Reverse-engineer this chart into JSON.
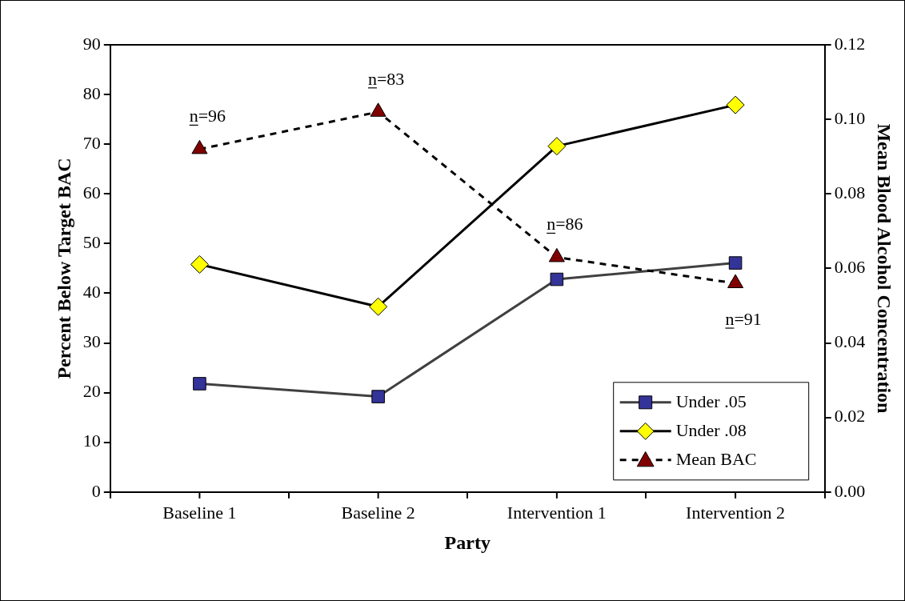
{
  "chart_data": {
    "type": "line",
    "xlabel": "Party",
    "ylabel": "Percent Below Target BAC",
    "y2label": "Mean Blood Alcohol Concentration",
    "categories": [
      "Baseline 1",
      "Baseline 2",
      "Intervention 1",
      "Intervention 2"
    ],
    "series": [
      {
        "name": "Under .05",
        "color": "#333399",
        "marker": "square",
        "line_style": "solid",
        "values": [
          21.8,
          19.2,
          42.8,
          46.1
        ]
      },
      {
        "name": "Under .08",
        "color": "#ffff00",
        "marker": "diamond",
        "line_style": "solid",
        "values": [
          45.8,
          37.3,
          69.6,
          77.9
        ]
      },
      {
        "name": "Mean BAC",
        "color": "#800000",
        "marker": "triangle",
        "line_style": "dashed",
        "axis": "y2",
        "values": [
          0.092,
          0.102,
          0.063,
          0.056
        ]
      }
    ],
    "ylim": [
      0,
      90
    ],
    "yticks": [
      0,
      10,
      20,
      30,
      40,
      50,
      60,
      70,
      80,
      90
    ],
    "y2lim": [
      0,
      0.12
    ],
    "y2ticks": [
      {
        "value": 0,
        "label": "0.00"
      },
      {
        "value": 0.02,
        "label": "0.02"
      },
      {
        "value": 0.04,
        "label": "0.04"
      },
      {
        "value": 0.06,
        "label": "0.06"
      },
      {
        "value": 0.08,
        "label": "0.08"
      },
      {
        "value": 0.1,
        "label": "0.10"
      },
      {
        "value": 0.12,
        "label": "0.12"
      }
    ],
    "annotations": [
      "n=96",
      "n=83",
      "n=86",
      "n=91"
    ],
    "grid": false,
    "legend": "bottom right"
  }
}
